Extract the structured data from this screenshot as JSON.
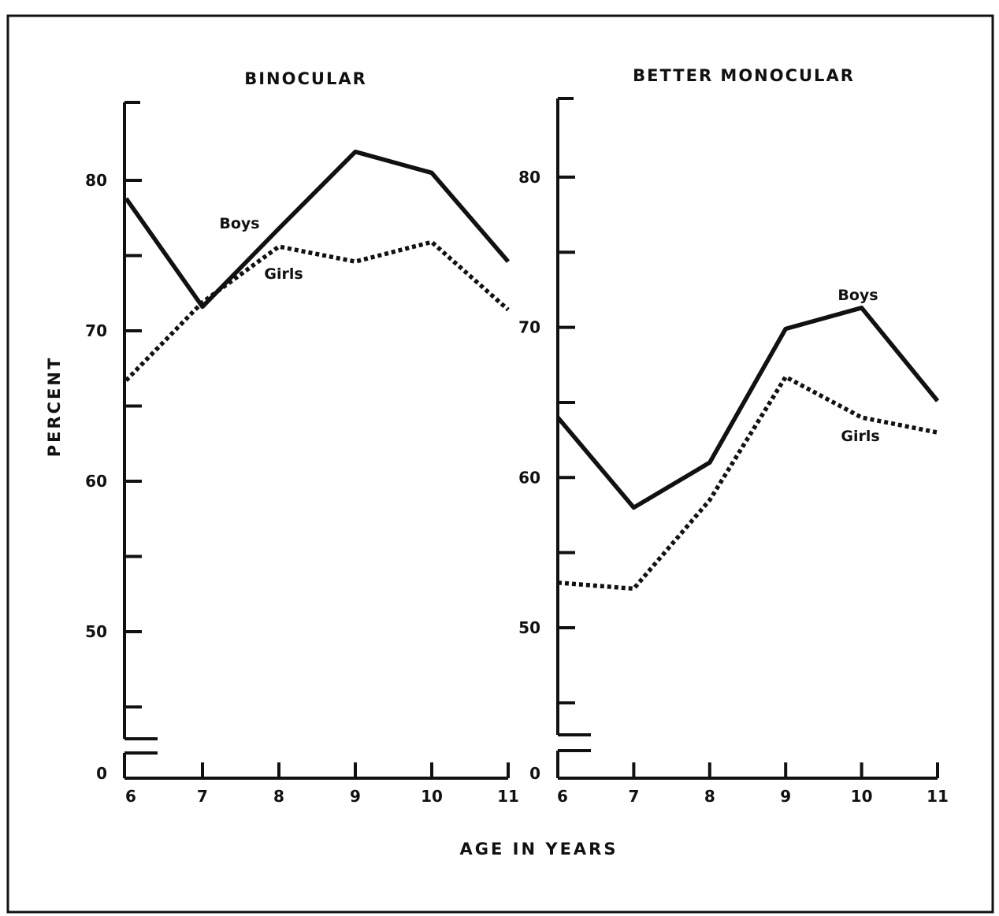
{
  "x_axis_label": "AGE IN YEARS",
  "y_axis_label": "PERCENT",
  "chart_data": [
    {
      "type": "line",
      "title": "BINOCULAR",
      "xlabel": "AGE IN YEARS",
      "ylabel": "PERCENT",
      "x": [
        6,
        7,
        8,
        9,
        10,
        11
      ],
      "x_tick_labels": [
        "6",
        "7",
        "8",
        "9",
        "10",
        "11"
      ],
      "y_tick_labels": [
        "80",
        "70",
        "60",
        "50",
        "0"
      ],
      "ylim": [
        0,
        85
      ],
      "y_axis_break": [
        0,
        43
      ],
      "grid": false,
      "series": [
        {
          "name": "Boys",
          "style": "solid",
          "values": [
            78.8,
            71.6,
            76.8,
            81.9,
            80.5,
            74.6
          ]
        },
        {
          "name": "Girls",
          "style": "dotted",
          "values": [
            66.7,
            71.9,
            75.6,
            74.6,
            75.9,
            71.4
          ]
        }
      ]
    },
    {
      "type": "line",
      "title": "BETTER MONOCULAR",
      "xlabel": "AGE IN YEARS",
      "ylabel": "PERCENT",
      "x": [
        6,
        7,
        8,
        9,
        10,
        11
      ],
      "x_tick_labels": [
        "6",
        "7",
        "8",
        "9",
        "10",
        "11"
      ],
      "y_tick_labels": [
        "80",
        "70",
        "60",
        "50",
        "0"
      ],
      "ylim": [
        0,
        85
      ],
      "y_axis_break": [
        0,
        43
      ],
      "grid": false,
      "series": [
        {
          "name": "Boys",
          "style": "solid",
          "values": [
            64.0,
            58.0,
            61.0,
            69.9,
            71.3,
            65.1
          ]
        },
        {
          "name": "Girls",
          "style": "dotted",
          "values": [
            53.0,
            52.6,
            58.5,
            66.7,
            64.0,
            63.0
          ]
        }
      ]
    }
  ]
}
